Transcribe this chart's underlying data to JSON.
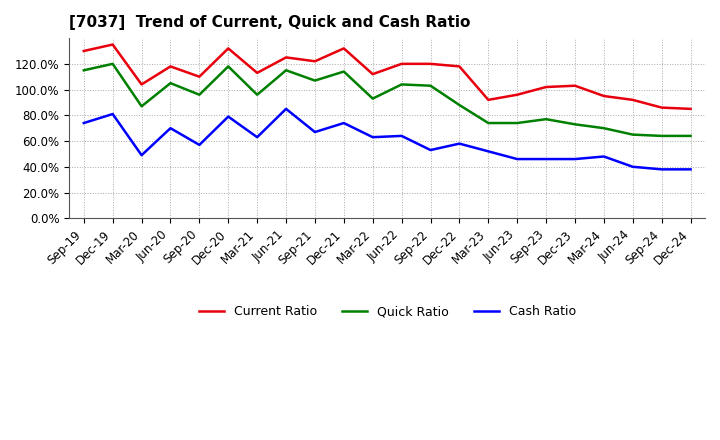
{
  "title": "[7037]  Trend of Current, Quick and Cash Ratio",
  "x_labels": [
    "Sep-19",
    "Dec-19",
    "Mar-20",
    "Jun-20",
    "Sep-20",
    "Dec-20",
    "Mar-21",
    "Jun-21",
    "Sep-21",
    "Dec-21",
    "Mar-22",
    "Jun-22",
    "Sep-22",
    "Dec-22",
    "Mar-23",
    "Jun-23",
    "Sep-23",
    "Dec-23",
    "Mar-24",
    "Jun-24",
    "Sep-24",
    "Dec-24"
  ],
  "current_ratio": [
    130,
    135,
    104,
    118,
    110,
    132,
    113,
    125,
    122,
    132,
    112,
    120,
    120,
    118,
    92,
    96,
    102,
    103,
    95,
    92,
    86,
    85
  ],
  "quick_ratio": [
    115,
    120,
    87,
    105,
    96,
    118,
    96,
    115,
    107,
    114,
    93,
    104,
    103,
    88,
    74,
    74,
    77,
    73,
    70,
    65,
    64,
    64
  ],
  "cash_ratio": [
    74,
    81,
    49,
    70,
    57,
    79,
    63,
    85,
    67,
    74,
    63,
    64,
    53,
    58,
    52,
    46,
    46,
    46,
    48,
    40,
    38,
    38
  ],
  "current_color": "#e8000d",
  "quick_color": "#008000",
  "cash_color": "#0000ff",
  "ylim": [
    0,
    140
  ],
  "yticks": [
    0,
    20,
    40,
    60,
    80,
    100,
    120
  ],
  "grid_color": "#aaaaaa",
  "background_color": "#ffffff",
  "plot_bg_color": "#ffffff",
  "legend_labels": [
    "Current Ratio",
    "Quick Ratio",
    "Cash Ratio"
  ],
  "line_width": 1.8,
  "title_fontsize": 11,
  "tick_fontsize": 8.5,
  "legend_fontsize": 9
}
